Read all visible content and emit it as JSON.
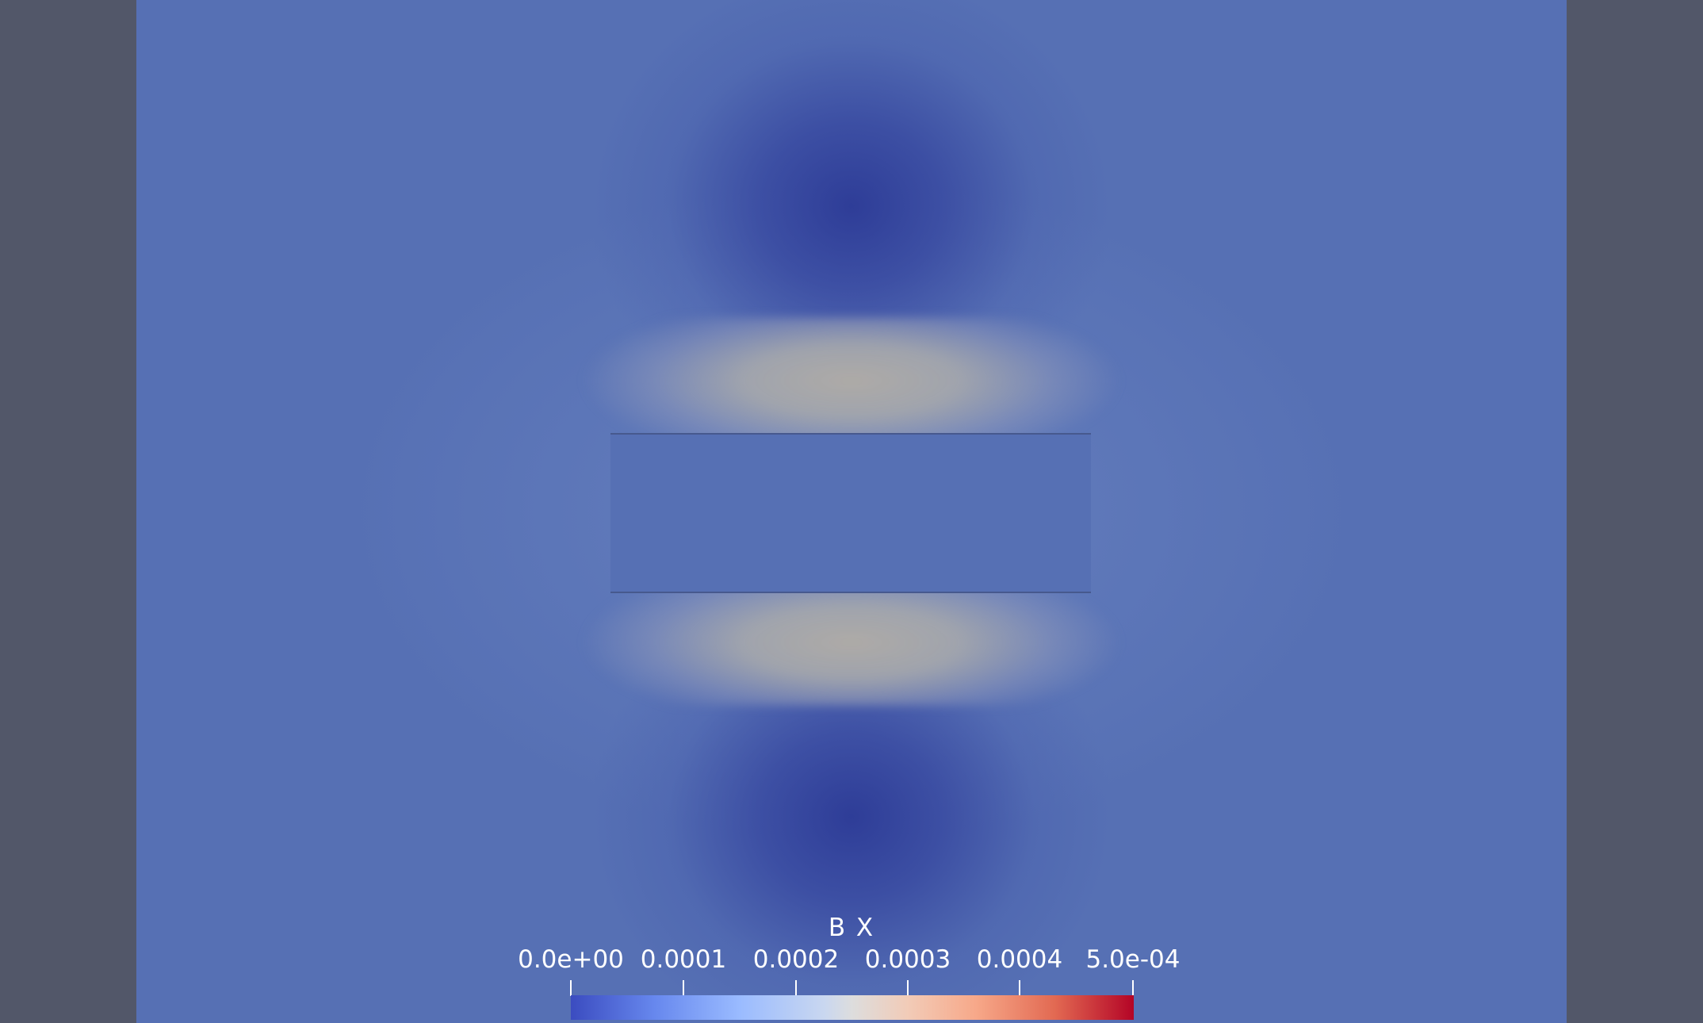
{
  "legend": {
    "title": "B X",
    "ticks": [
      "0.0e+00",
      "0.0001",
      "0.0002",
      "0.0003",
      "0.0004",
      "5.0e-04"
    ],
    "range": [
      0.0,
      0.0005
    ],
    "colormap": "Cool to Warm"
  },
  "colors": {
    "background": "#525769",
    "viewport": "#5670b4",
    "colormap_low": "#3b4cc0",
    "colormap_mid": "#dddddd",
    "colormap_high": "#b40426"
  }
}
